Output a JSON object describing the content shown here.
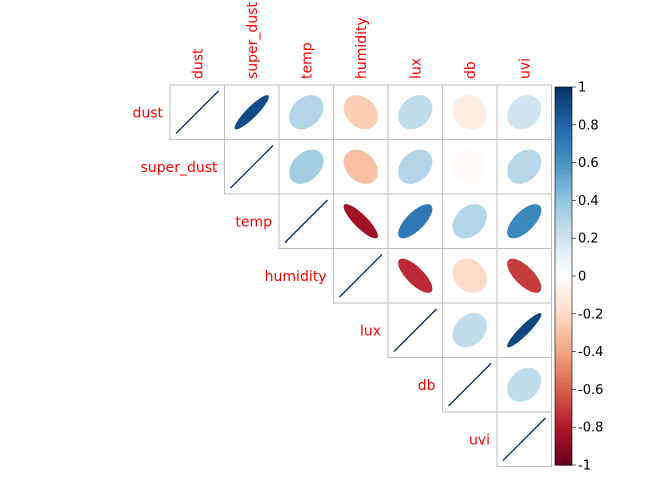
{
  "chart_data": {
    "type": "heatmap",
    "style": "corrplot-upper-ellipse",
    "variables": [
      "dust",
      "super_dust",
      "temp",
      "humidity",
      "lux",
      "db",
      "uvi"
    ],
    "matrix": [
      [
        1.0,
        0.9,
        0.3,
        -0.25,
        0.25,
        -0.1,
        0.2
      ],
      [
        0.9,
        1.0,
        0.35,
        -0.3,
        0.3,
        -0.03,
        0.28
      ],
      [
        0.3,
        0.35,
        1.0,
        -0.85,
        0.72,
        0.3,
        0.65
      ],
      [
        -0.25,
        -0.3,
        -0.85,
        1.0,
        -0.75,
        -0.2,
        -0.7
      ],
      [
        0.25,
        0.3,
        0.72,
        -0.75,
        1.0,
        0.25,
        0.92
      ],
      [
        -0.1,
        -0.03,
        0.3,
        -0.2,
        0.25,
        1.0,
        0.25
      ],
      [
        0.2,
        0.28,
        0.65,
        -0.7,
        0.92,
        0.25,
        1.0
      ]
    ],
    "colorbar": {
      "range": [
        -1,
        1
      ],
      "ticks": [
        "1",
        "0.8",
        "0.6",
        "0.4",
        "0.2",
        "0",
        "-0.2",
        "-0.4",
        "-0.6",
        "-0.8",
        "-1"
      ]
    },
    "label_color": "#ff0000",
    "palette": [
      "#67001F",
      "#B2182B",
      "#D6604D",
      "#F4A582",
      "#FDDBC7",
      "#FFFFFF",
      "#D1E5F0",
      "#92C5DE",
      "#4393C3",
      "#2166AC",
      "#053061"
    ]
  }
}
